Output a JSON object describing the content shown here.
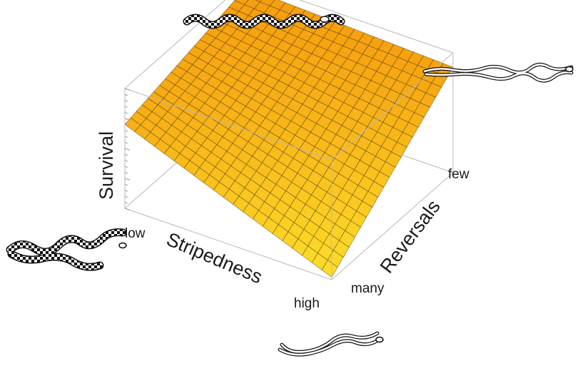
{
  "chart_data": {
    "type": "surface3d",
    "axes": {
      "x": {
        "label": "Stripedness",
        "ticks": [
          "low",
          "high"
        ],
        "range": [
          0,
          1
        ]
      },
      "y": {
        "label": "Reversals",
        "ticks": [
          "many",
          "few"
        ],
        "range": [
          0,
          1
        ]
      },
      "z": {
        "label": "Survival",
        "ticks": [],
        "range": [
          0,
          1
        ]
      }
    },
    "surface": {
      "grid_x": 21,
      "grid_y": 21,
      "corners": [
        {
          "stripedness": 0,
          "reversals": 0,
          "survival": 0.7
        },
        {
          "stripedness": 1,
          "reversals": 0,
          "survival": 0.02
        },
        {
          "stripedness": 0,
          "reversals": 1,
          "survival": 0.95
        },
        {
          "stripedness": 1,
          "reversals": 1,
          "survival": 0.88
        }
      ],
      "color_high": "#f59a0c",
      "color_low": "#fde02a",
      "mesh_color": "#3a2a10"
    },
    "box": true,
    "grid": false,
    "illustrations": [
      {
        "name": "striped-snake",
        "pattern": "checkered"
      },
      {
        "name": "reversing-snake",
        "pattern": "plain-outline"
      }
    ]
  }
}
